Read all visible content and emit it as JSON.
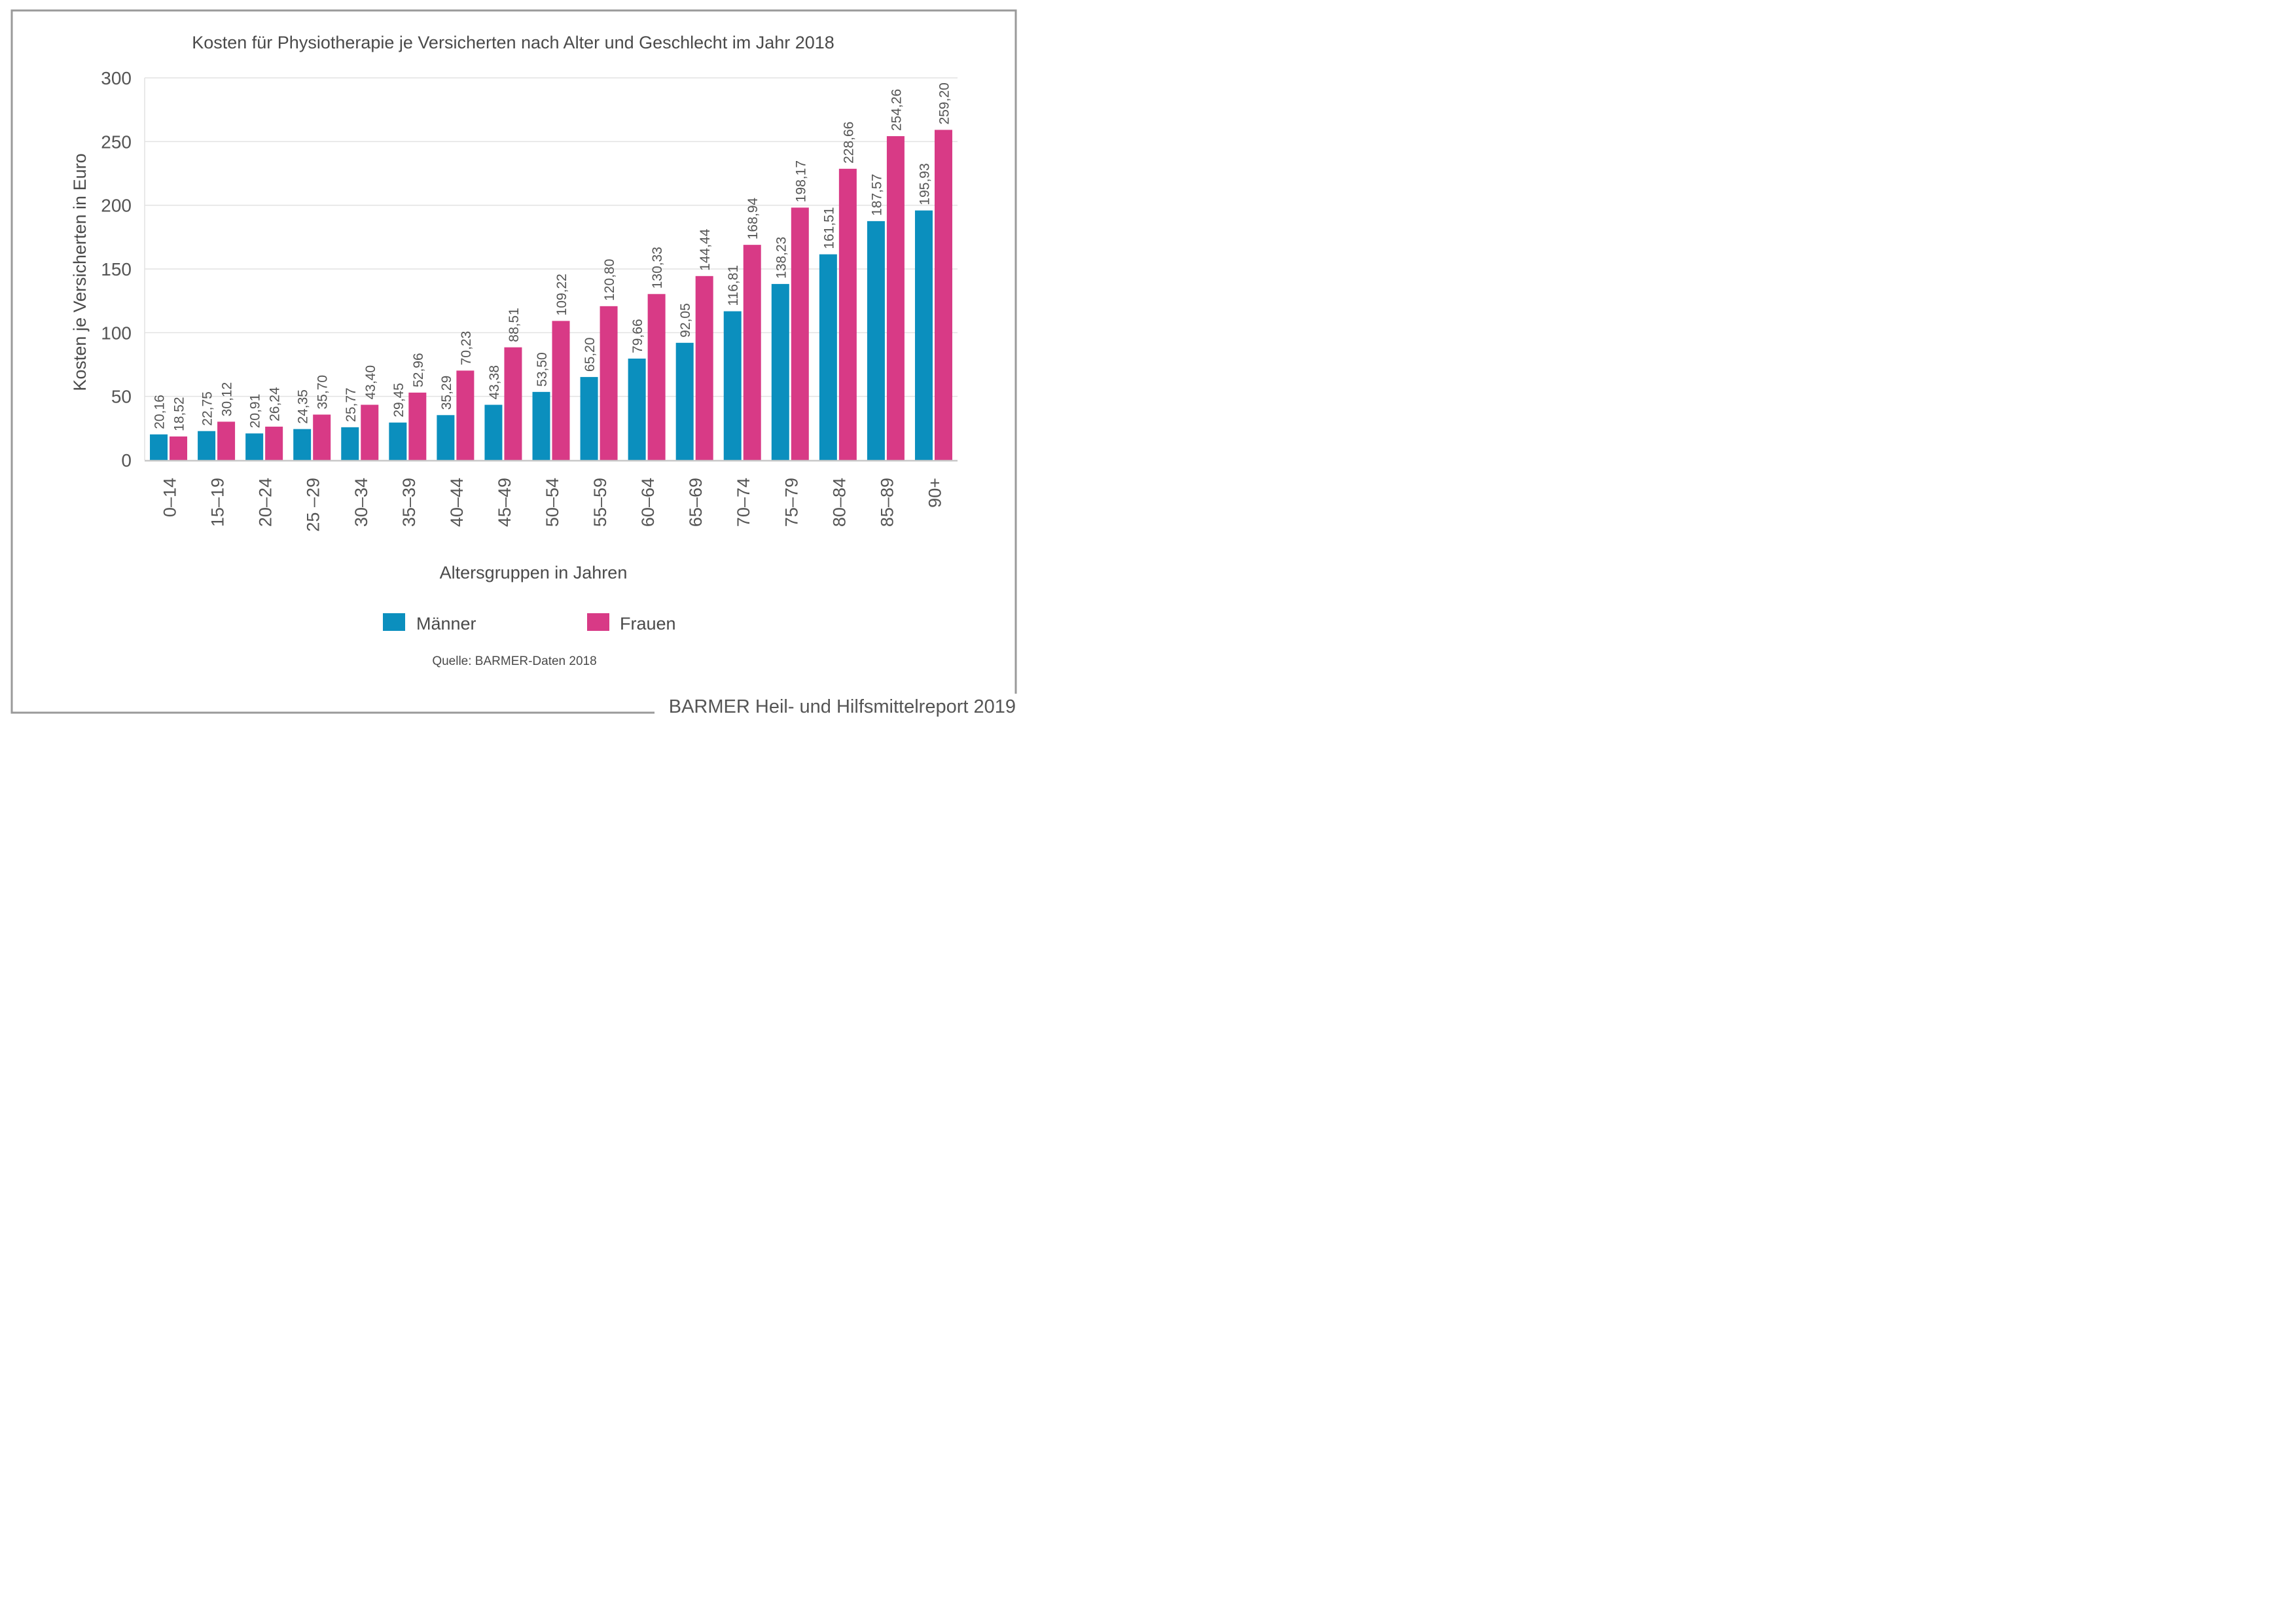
{
  "chart_data": {
    "type": "bar",
    "title": "Kosten für Physiotherapie je Versicherten nach Alter und Geschlecht im Jahr 2018",
    "xlabel": "Altersgruppen in Jahren",
    "ylabel": "Kosten je Versicherten in Euro",
    "ylim": [
      0,
      300
    ],
    "yticks": [
      0,
      50,
      100,
      150,
      200,
      250,
      300
    ],
    "grid": true,
    "legend_position": "bottom-center",
    "categories": [
      "0–14",
      "15–19",
      "20–24",
      "25 –29",
      "30–34",
      "35–39",
      "40–44",
      "45–49",
      "50–54",
      "55–59",
      "60–64",
      "65–69",
      "70–74",
      "75–79",
      "80–84",
      "85–89",
      "90+"
    ],
    "series": [
      {
        "name": "Männer",
        "color": "#0b8fbe",
        "values": [
          20.16,
          22.75,
          20.91,
          24.35,
          25.77,
          29.45,
          35.29,
          43.38,
          53.5,
          65.2,
          79.66,
          92.05,
          116.81,
          138.23,
          161.51,
          187.57,
          195.93
        ],
        "labels": [
          "20,16",
          "22,75",
          "20,91",
          "24,35",
          "25,77",
          "29,45",
          "35,29",
          "43,38",
          "53,50",
          "65,20",
          "79,66",
          "92,05",
          "116,81",
          "138,23",
          "161,51",
          "187,57",
          "195,93"
        ]
      },
      {
        "name": "Frauen",
        "color": "#d83a86",
        "values": [
          18.52,
          30.12,
          26.24,
          35.7,
          43.4,
          52.96,
          70.23,
          88.51,
          109.22,
          120.8,
          130.33,
          144.44,
          168.94,
          198.17,
          228.66,
          254.26,
          259.2
        ],
        "labels": [
          "18,52",
          "30,12",
          "26,24",
          "35,70",
          "43,40",
          "52,96",
          "70,23",
          "88,51",
          "109,22",
          "120,80",
          "130,33",
          "144,44",
          "168,94",
          "198,17",
          "228,66",
          "254,26",
          "259,20"
        ]
      }
    ],
    "source": "Quelle: BARMER-Daten 2018"
  },
  "footer": {
    "text": "BARMER Heil- und Hilfsmittelreport 2019"
  },
  "colors": {
    "frame": "#9a9a9a",
    "grid": "#e2e2e2",
    "axis": "#c8c8c8",
    "text": "#4a4a4a"
  }
}
